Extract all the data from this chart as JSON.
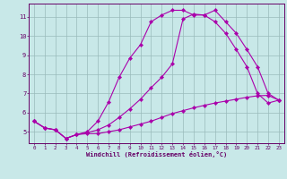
{
  "background_color": "#c8e8e8",
  "line_color": "#aa00aa",
  "grid_color": "#99bbbb",
  "xlabel": "Windchill (Refroidissement éolien,°C)",
  "xlabel_color": "#660066",
  "tick_color": "#660066",
  "axis_color": "#660066",
  "xlim": [
    -0.5,
    23.5
  ],
  "ylim": [
    4.4,
    11.7
  ],
  "yticks": [
    5,
    6,
    7,
    8,
    9,
    10,
    11
  ],
  "xticks": [
    0,
    1,
    2,
    3,
    4,
    5,
    6,
    7,
    8,
    9,
    10,
    11,
    12,
    13,
    14,
    15,
    16,
    17,
    18,
    19,
    20,
    21,
    22,
    23
  ],
  "curve1_x": [
    0,
    1,
    2,
    3,
    4,
    5,
    6,
    7,
    8,
    9,
    10,
    11,
    12,
    13,
    14,
    15,
    16,
    17,
    18,
    19,
    20,
    21,
    22,
    23
  ],
  "curve1_y": [
    5.55,
    5.2,
    5.1,
    4.65,
    4.85,
    4.9,
    4.9,
    5.0,
    5.1,
    5.25,
    5.4,
    5.55,
    5.75,
    5.95,
    6.1,
    6.25,
    6.38,
    6.5,
    6.6,
    6.7,
    6.8,
    6.88,
    6.9,
    6.65
  ],
  "curve2_x": [
    0,
    1,
    2,
    3,
    4,
    5,
    6,
    7,
    8,
    9,
    10,
    11,
    12,
    13,
    14,
    15,
    16,
    17,
    18,
    19,
    20,
    21,
    22,
    23
  ],
  "curve2_y": [
    5.55,
    5.2,
    5.1,
    4.65,
    4.85,
    4.95,
    5.1,
    5.35,
    5.75,
    6.2,
    6.7,
    7.3,
    7.85,
    8.55,
    10.9,
    11.15,
    11.1,
    11.35,
    10.75,
    10.15,
    9.3,
    8.4,
    7.0,
    6.65
  ],
  "curve3_x": [
    0,
    1,
    2,
    3,
    4,
    5,
    6,
    7,
    8,
    9,
    10,
    11,
    12,
    13,
    14,
    15,
    16,
    17,
    18,
    19,
    20,
    21,
    22,
    23
  ],
  "curve3_y": [
    5.55,
    5.2,
    5.1,
    4.65,
    4.85,
    5.0,
    5.55,
    6.55,
    7.85,
    8.85,
    9.55,
    10.75,
    11.1,
    11.35,
    11.35,
    11.1,
    11.1,
    10.75,
    10.15,
    9.3,
    8.4,
    7.0,
    6.5,
    6.65
  ]
}
